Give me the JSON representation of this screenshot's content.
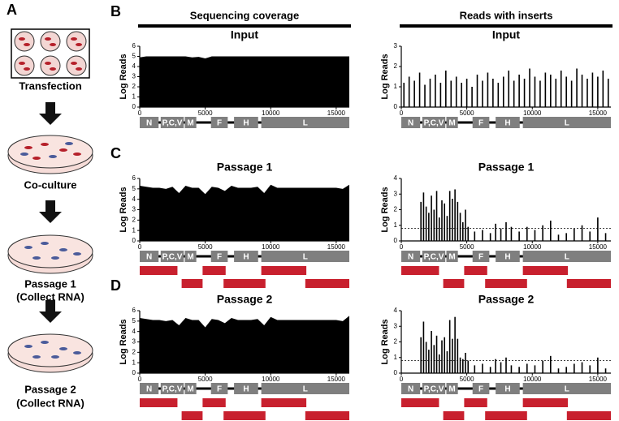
{
  "panel_labels": {
    "a": "A",
    "b": "B",
    "c": "C",
    "d": "D"
  },
  "diagram": {
    "steps": [
      [
        "Transfection"
      ],
      [
        "Co-culture"
      ],
      [
        "Passage 1",
        "(Collect RNA)"
      ],
      [
        "Passage 2",
        "(Collect RNA)"
      ]
    ]
  },
  "column_headers": [
    "Sequencing coverage",
    "Reads with inserts"
  ],
  "genome_map": {
    "genes": [
      "N",
      "P,C,V",
      "M",
      "F",
      "H",
      "L"
    ]
  },
  "chart_data": [
    {
      "type": "area",
      "title": "Input",
      "y_label": "Log Reads",
      "color": "#000000",
      "x": [
        0,
        500,
        1000,
        1500,
        2000,
        2500,
        3000,
        3500,
        4000,
        4500,
        5000,
        5500,
        6000,
        6500,
        7000,
        7500,
        8000,
        8500,
        9000,
        9500,
        10000,
        10500,
        11000,
        11500,
        12000,
        12500,
        13000,
        13500,
        14000,
        14500,
        15000,
        15500,
        16000
      ],
      "values": [
        4.9,
        5.0,
        5.0,
        5.0,
        5.0,
        5.0,
        5.0,
        5.0,
        4.9,
        4.95,
        4.8,
        5.0,
        5.0,
        5.0,
        5.0,
        5.0,
        5.0,
        5.0,
        5.0,
        5.0,
        5.0,
        5.0,
        5.0,
        5.0,
        5.0,
        5.0,
        5.0,
        5.0,
        5.0,
        5.0,
        5.0,
        5.0,
        5.0
      ],
      "xlim": [
        0,
        16000
      ],
      "ylim": [
        0,
        6
      ],
      "xticks": [
        0,
        5000,
        10000,
        15000
      ],
      "yticks": [
        0,
        1,
        2,
        3,
        4,
        5,
        6
      ]
    },
    {
      "type": "bar",
      "title": "Input",
      "y_label": "Log Reads",
      "color": "#000000",
      "x": [
        200,
        600,
        1000,
        1400,
        1800,
        2200,
        2600,
        3000,
        3400,
        3800,
        4200,
        4600,
        5000,
        5400,
        5800,
        6200,
        6600,
        7000,
        7400,
        7800,
        8200,
        8600,
        9000,
        9400,
        9800,
        10200,
        10600,
        11000,
        11400,
        11800,
        12200,
        12600,
        13000,
        13400,
        13800,
        14200,
        14600,
        15000,
        15400,
        15800
      ],
      "values": [
        1.2,
        1.5,
        1.3,
        1.7,
        1.1,
        1.4,
        1.6,
        1.2,
        1.8,
        1.3,
        1.5,
        1.2,
        1.4,
        1.0,
        1.6,
        1.3,
        1.7,
        1.4,
        1.2,
        1.5,
        1.8,
        1.3,
        1.6,
        1.4,
        1.9,
        1.5,
        1.3,
        1.7,
        1.6,
        1.4,
        1.8,
        1.5,
        1.3,
        1.9,
        1.6,
        1.4,
        1.7,
        1.5,
        1.8,
        1.4
      ],
      "xlim": [
        0,
        16000
      ],
      "ylim": [
        0,
        3
      ],
      "xticks": [
        0,
        5000,
        10000,
        15000
      ],
      "yticks": [
        0,
        1,
        2,
        3
      ]
    },
    {
      "type": "area",
      "title": "Passage 1",
      "y_label": "Log Reads",
      "color": "#000000",
      "x": [
        0,
        500,
        1000,
        1500,
        2000,
        2500,
        3000,
        3500,
        4000,
        4500,
        5000,
        5500,
        6000,
        6500,
        7000,
        7500,
        8000,
        8500,
        9000,
        9500,
        10000,
        10500,
        11000,
        11500,
        12000,
        12500,
        13000,
        13500,
        14000,
        14500,
        15000,
        15500,
        16000
      ],
      "values": [
        5.3,
        5.2,
        5.1,
        5.1,
        5.0,
        5.2,
        4.6,
        5.3,
        5.1,
        5.1,
        4.5,
        5.2,
        5.1,
        4.8,
        5.3,
        5.1,
        5.1,
        5.1,
        5.2,
        4.6,
        5.4,
        5.1,
        5.1,
        5.1,
        5.1,
        5.1,
        5.1,
        5.1,
        5.1,
        5.1,
        5.1,
        5.0,
        5.4
      ],
      "xlim": [
        0,
        16000
      ],
      "ylim": [
        0,
        6
      ],
      "xticks": [
        0,
        5000,
        10000,
        15000
      ],
      "yticks": [
        0,
        1,
        2,
        3,
        4,
        5,
        6
      ]
    },
    {
      "type": "bar",
      "title": "Passage 1",
      "y_label": "Log Reads",
      "color": "#000000",
      "reference_line": 0.8,
      "x": [
        1500,
        1700,
        1900,
        2100,
        2300,
        2500,
        2700,
        2900,
        3100,
        3300,
        3500,
        3700,
        3900,
        4100,
        4300,
        4500,
        4700,
        4900,
        5100,
        5600,
        6200,
        6800,
        7200,
        7600,
        8000,
        8400,
        9000,
        9600,
        10200,
        10800,
        11400,
        12000,
        12600,
        13200,
        13800,
        14400,
        15000,
        15600
      ],
      "values": [
        2.5,
        3.1,
        2.2,
        1.8,
        2.9,
        2.0,
        3.2,
        1.5,
        2.6,
        2.4,
        1.6,
        3.2,
        2.7,
        3.3,
        2.5,
        1.8,
        1.2,
        2.0,
        0.9,
        0.6,
        0.7,
        0.5,
        1.1,
        0.8,
        1.2,
        0.9,
        0.6,
        0.9,
        0.7,
        1.0,
        1.3,
        0.4,
        0.5,
        0.8,
        1.0,
        0.6,
        1.5,
        0.5
      ],
      "xlim": [
        0,
        16000
      ],
      "ylim": [
        0,
        4
      ],
      "xticks": [
        0,
        5000,
        10000,
        15000
      ],
      "yticks": [
        0,
        1,
        2,
        3,
        4
      ]
    },
    {
      "type": "area",
      "title": "Passage 2",
      "y_label": "Log Reads",
      "color": "#000000",
      "x": [
        0,
        500,
        1000,
        1500,
        2000,
        2500,
        3000,
        3500,
        4000,
        4500,
        5000,
        5500,
        6000,
        6500,
        7000,
        7500,
        8000,
        8500,
        9000,
        9500,
        10000,
        10500,
        11000,
        11500,
        12000,
        12500,
        13000,
        13500,
        14000,
        14500,
        15000,
        15500,
        16000
      ],
      "values": [
        5.3,
        5.2,
        5.1,
        5.1,
        5.0,
        5.1,
        4.6,
        5.3,
        5.1,
        5.1,
        4.4,
        5.2,
        5.1,
        4.8,
        5.3,
        5.1,
        5.1,
        5.1,
        5.2,
        4.6,
        5.4,
        5.1,
        5.1,
        5.1,
        5.1,
        5.1,
        5.1,
        5.1,
        5.1,
        5.1,
        5.1,
        5.0,
        5.5
      ],
      "xlim": [
        0,
        16000
      ],
      "ylim": [
        0,
        6
      ],
      "xticks": [
        0,
        5000,
        10000,
        15000
      ],
      "yticks": [
        0,
        1,
        2,
        3,
        4,
        5,
        6
      ]
    },
    {
      "type": "bar",
      "title": "Passage 2",
      "y_label": "Log Reads",
      "color": "#000000",
      "reference_line": 0.8,
      "x": [
        1500,
        1700,
        1900,
        2100,
        2300,
        2500,
        2700,
        2900,
        3100,
        3300,
        3500,
        3700,
        3900,
        4100,
        4300,
        4500,
        4700,
        4900,
        5100,
        5600,
        6200,
        6800,
        7200,
        7600,
        8000,
        8400,
        9000,
        9600,
        10200,
        10800,
        11400,
        12000,
        12600,
        13200,
        13800,
        14400,
        15000,
        15600
      ],
      "values": [
        2.3,
        3.3,
        2.0,
        1.5,
        2.7,
        1.8,
        2.4,
        1.2,
        2.1,
        2.3,
        1.4,
        3.4,
        2.2,
        3.6,
        2.2,
        1.0,
        0.9,
        1.3,
        0.8,
        0.5,
        0.6,
        0.4,
        0.9,
        0.7,
        1.0,
        0.5,
        0.4,
        0.6,
        0.5,
        0.8,
        1.1,
        0.3,
        0.4,
        0.6,
        0.7,
        0.5,
        1.0,
        0.3
      ],
      "xlim": [
        0,
        16000
      ],
      "ylim": [
        0,
        4
      ],
      "xticks": [
        0,
        5000,
        10000,
        15000
      ],
      "yticks": [
        0,
        1,
        2,
        3,
        4
      ]
    }
  ]
}
